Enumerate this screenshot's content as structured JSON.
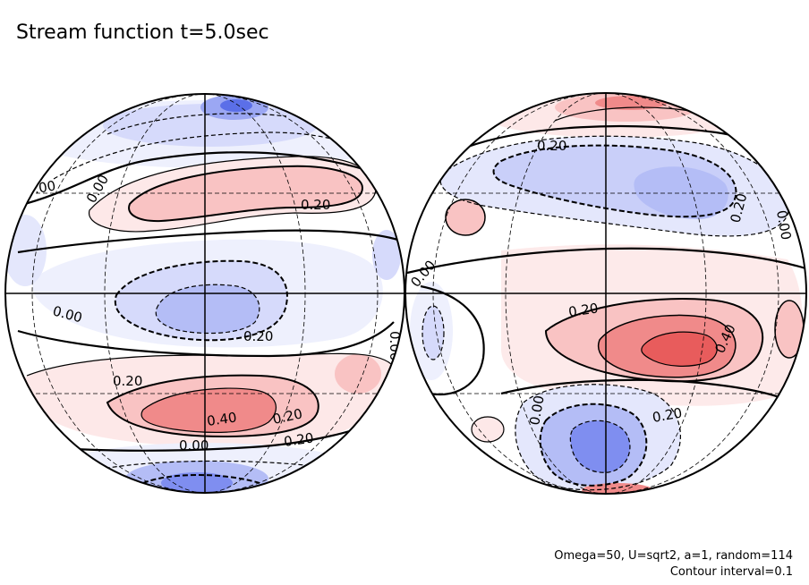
{
  "title": "Stream function t=5.0sec",
  "footer": {
    "line1": "Omega=50, U=sqrt2, a=1, random=114",
    "line2": "Contour interval=0.1"
  },
  "colors": {
    "positive": "#e85c5c",
    "negative": "#5b6fe8",
    "background": "#ffffff"
  },
  "chart_data": [
    {
      "type": "heatmap",
      "projection": "orthographic",
      "panel": "left hemisphere",
      "contour_labels": [
        "0.00",
        "0.00",
        "0.20",
        "0.00",
        "0.20",
        "0.00",
        "0.20",
        "0.40",
        "0.20",
        "0.00",
        "0.20"
      ]
    },
    {
      "type": "heatmap",
      "projection": "orthographic",
      "panel": "right hemisphere",
      "contour_labels": [
        "0.20",
        "0.20",
        "0.00",
        "0.00",
        "0.20",
        "0.40",
        "0.00",
        "0.20"
      ]
    }
  ]
}
